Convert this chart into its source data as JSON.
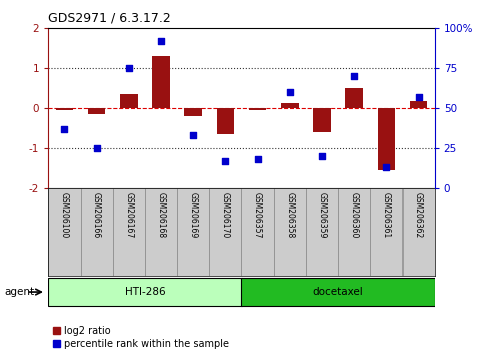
{
  "title": "GDS2971 / 6.3.17.2",
  "samples": [
    "GSM206100",
    "GSM206166",
    "GSM206167",
    "GSM206168",
    "GSM206169",
    "GSM206170",
    "GSM206357",
    "GSM206358",
    "GSM206359",
    "GSM206360",
    "GSM206361",
    "GSM206362"
  ],
  "log2_ratio": [
    -0.05,
    -0.15,
    0.35,
    1.3,
    -0.2,
    -0.65,
    -0.05,
    0.12,
    -0.6,
    0.5,
    -1.55,
    0.18
  ],
  "percentile_rank": [
    37,
    25,
    75,
    92,
    33,
    17,
    18,
    60,
    20,
    70,
    13,
    57
  ],
  "groups": [
    {
      "label": "HTI-286",
      "start": 0,
      "end": 6,
      "color": "#AAFFAA"
    },
    {
      "label": "docetaxel",
      "start": 6,
      "end": 12,
      "color": "#33CC33"
    }
  ],
  "ylim": [
    -2,
    2
  ],
  "yticks_left": [
    -2,
    -1,
    0,
    1,
    2
  ],
  "yticks_right": [
    0,
    25,
    50,
    75,
    100
  ],
  "bar_color": "#991111",
  "dot_color": "#0000CC",
  "zero_line_color": "#DD0000",
  "dotted_line_color": "#333333",
  "agent_label": "agent",
  "legend_log2": "log2 ratio",
  "legend_pct": "percentile rank within the sample",
  "background_color": "#ffffff",
  "plot_bg_color": "#ffffff",
  "bar_width": 0.55,
  "label_bg": "#CCCCCC",
  "group1_color": "#BBFFBB",
  "group2_color": "#22BB22"
}
